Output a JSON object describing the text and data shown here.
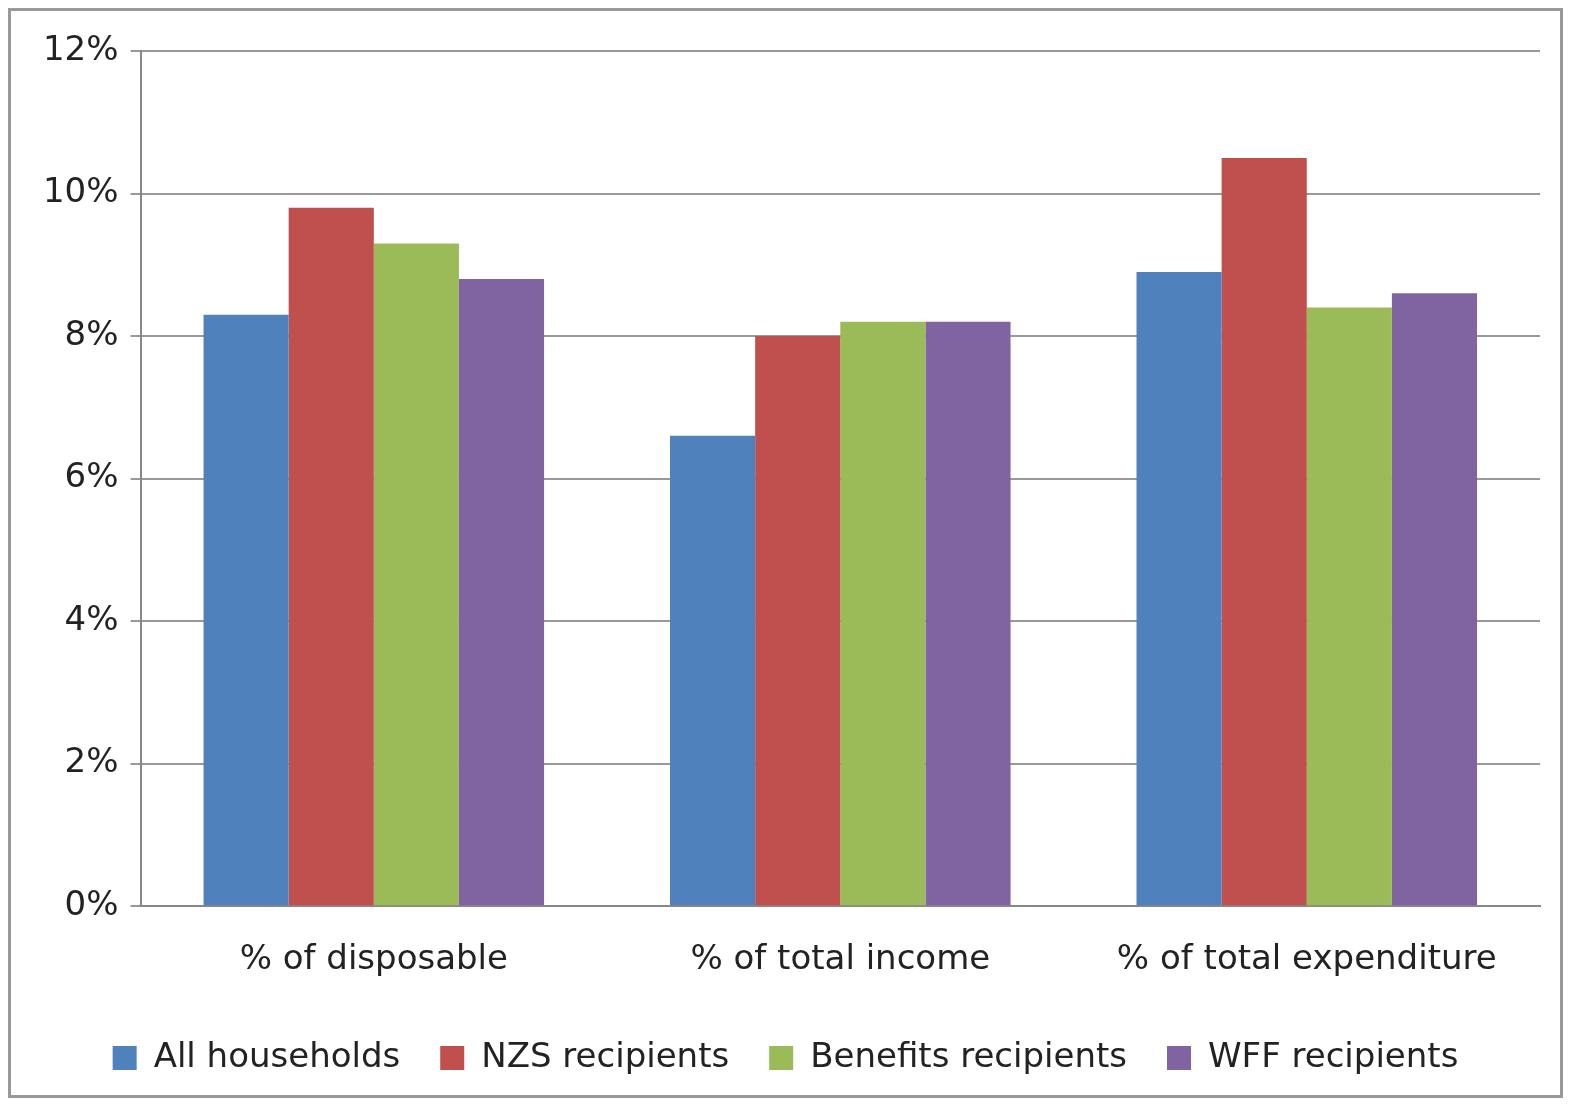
{
  "chart_data": {
    "type": "bar",
    "categories": [
      "% of disposable",
      "% of total income",
      "% of total expenditure"
    ],
    "series": [
      {
        "name": "All households",
        "color": "#4f81bd",
        "values": [
          8.3,
          6.6,
          8.9
        ]
      },
      {
        "name": "NZS recipients",
        "color": "#c0504d",
        "values": [
          9.8,
          8.0,
          10.5
        ]
      },
      {
        "name": "Benefits recipients",
        "color": "#9bbb59",
        "values": [
          9.3,
          8.2,
          8.4
        ]
      },
      {
        "name": "WFF recipients",
        "color": "#8064a2",
        "values": [
          8.8,
          8.2,
          8.6
        ]
      }
    ],
    "ylim": [
      0,
      12
    ],
    "yticks": [
      {
        "value": 0,
        "label": "0%"
      },
      {
        "value": 2,
        "label": "2%"
      },
      {
        "value": 4,
        "label": "4%"
      },
      {
        "value": 6,
        "label": "6%"
      },
      {
        "value": 8,
        "label": "8%"
      },
      {
        "value": 10,
        "label": "10%"
      },
      {
        "value": 12,
        "label": "12%"
      }
    ],
    "grid": "y",
    "legend": "bottom"
  }
}
